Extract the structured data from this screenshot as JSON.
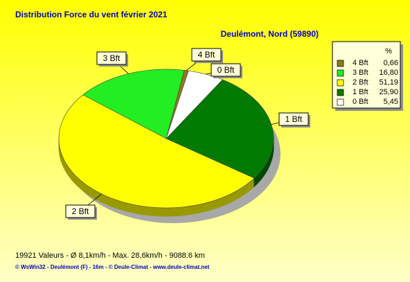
{
  "chart_data": {
    "type": "pie",
    "title": "Distribution Force du vent  février 2021",
    "subtitle": "Deulémont, Nord (59890)",
    "legend_title": "%",
    "categories": [
      "4 Bft",
      "3 Bft",
      "2 Bft",
      "1 Bft",
      "0 Bft"
    ],
    "values": [
      0.66,
      16.8,
      51.19,
      25.9,
      5.45
    ],
    "value_labels": [
      "0,66",
      "16,80",
      "51,19",
      "25,90",
      "5,45"
    ],
    "colors": [
      "#8a7a20",
      "#22ee22",
      "#ffff00",
      "#007a00",
      "#ffffff"
    ],
    "notes": [
      "19921 Valeurs   -   Ø 8,1km/h  -  Max. 28,6km/h   -   9088.6 km",
      "© WsWin32  -  Deulémont (F) - 16m  -  © Deule-Climat - www.deule-climat.net"
    ]
  }
}
